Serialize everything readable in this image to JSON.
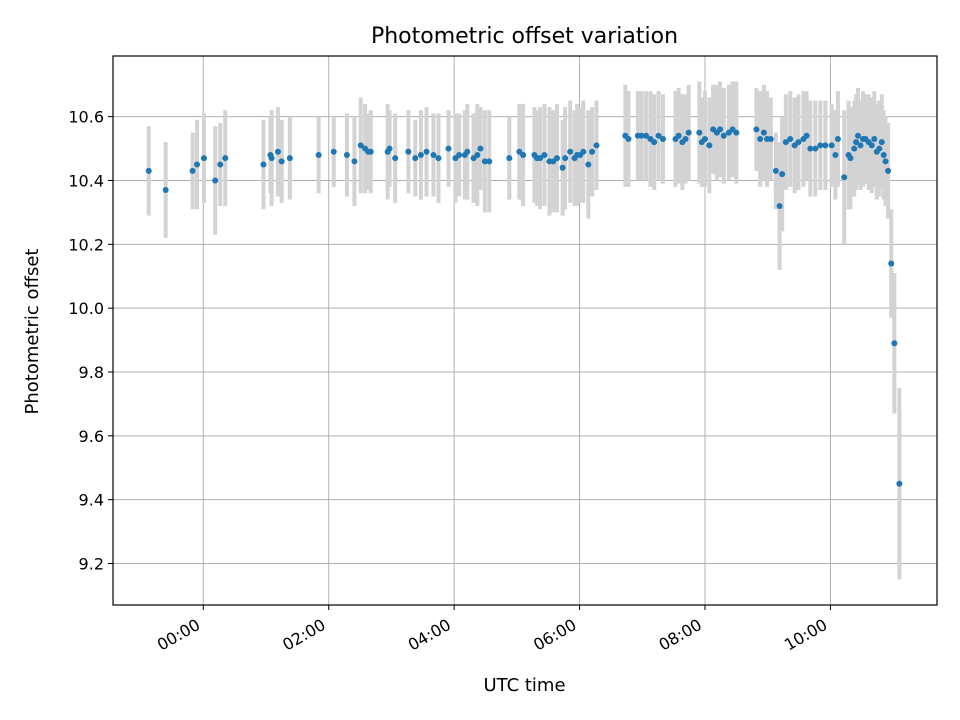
{
  "chart_data": {
    "type": "scatter",
    "title": "Photometric offset variation",
    "xlabel": "UTC time",
    "ylabel": "Photometric offset",
    "x_unit": "hours since 00:00 UTC",
    "xlim": [
      -1.44,
      11.7
    ],
    "ylim": [
      9.07,
      10.79
    ],
    "xticks": [
      0,
      2,
      4,
      6,
      8,
      10
    ],
    "xtick_labels": [
      "00:00",
      "02:00",
      "04:00",
      "06:00",
      "08:00",
      "10:00"
    ],
    "yticks": [
      9.2,
      9.4,
      9.6,
      9.8,
      10.0,
      10.2,
      10.4,
      10.6
    ],
    "ytick_labels": [
      "9.2",
      "9.4",
      "9.6",
      "9.8",
      "10.0",
      "10.2",
      "10.4",
      "10.6"
    ],
    "grid": true,
    "marker_color": "#1f77b4",
    "errorbar_color": "#d3d3d3",
    "series": [
      {
        "name": "Photometric offset",
        "x": [
          -0.87,
          -0.6,
          -0.17,
          -0.1,
          0.01,
          0.19,
          0.27,
          0.35,
          0.96,
          1.07,
          1.09,
          1.19,
          1.25,
          1.38,
          1.84,
          2.08,
          2.29,
          2.41,
          2.51,
          2.58,
          2.63,
          2.67,
          2.94,
          2.97,
          3.06,
          3.27,
          3.38,
          3.47,
          3.56,
          3.67,
          3.75,
          3.91,
          4.02,
          4.08,
          4.17,
          4.21,
          4.31,
          4.37,
          4.42,
          4.49,
          4.56,
          4.88,
          5.04,
          5.1,
          5.28,
          5.32,
          5.37,
          5.44,
          5.52,
          5.58,
          5.64,
          5.73,
          5.77,
          5.85,
          5.92,
          5.96,
          6.01,
          6.06,
          6.14,
          6.2,
          6.27,
          6.73,
          6.78,
          6.93,
          6.99,
          7.06,
          7.13,
          7.19,
          7.26,
          7.33,
          7.53,
          7.58,
          7.64,
          7.69,
          7.74,
          7.91,
          7.95,
          8.0,
          8.07,
          8.13,
          8.19,
          8.24,
          8.3,
          8.38,
          8.44,
          8.5,
          8.82,
          8.88,
          8.94,
          8.99,
          9.05,
          9.13,
          9.19,
          9.23,
          9.29,
          9.36,
          9.43,
          9.49,
          9.57,
          9.62,
          9.68,
          9.76,
          9.84,
          9.92,
          10.02,
          10.08,
          10.12,
          10.22,
          10.29,
          10.32,
          10.38,
          10.41,
          10.44,
          10.48,
          10.52,
          10.56,
          10.61,
          10.66,
          10.7,
          10.74,
          10.78,
          10.82,
          10.85,
          10.88,
          10.92,
          10.97,
          11.02,
          11.1
        ],
        "y": [
          10.43,
          10.37,
          10.43,
          10.45,
          10.47,
          10.4,
          10.45,
          10.47,
          10.45,
          10.48,
          10.47,
          10.49,
          10.46,
          10.47,
          10.48,
          10.49,
          10.48,
          10.46,
          10.51,
          10.5,
          10.49,
          10.49,
          10.49,
          10.5,
          10.47,
          10.49,
          10.47,
          10.48,
          10.49,
          10.48,
          10.47,
          10.5,
          10.47,
          10.48,
          10.48,
          10.49,
          10.47,
          10.48,
          10.5,
          10.46,
          10.46,
          10.47,
          10.49,
          10.48,
          10.48,
          10.47,
          10.47,
          10.48,
          10.46,
          10.46,
          10.47,
          10.44,
          10.47,
          10.49,
          10.47,
          10.48,
          10.48,
          10.49,
          10.45,
          10.49,
          10.51,
          10.54,
          10.53,
          10.54,
          10.54,
          10.54,
          10.53,
          10.52,
          10.54,
          10.53,
          10.53,
          10.54,
          10.52,
          10.53,
          10.55,
          10.55,
          10.52,
          10.53,
          10.51,
          10.56,
          10.55,
          10.56,
          10.54,
          10.55,
          10.56,
          10.55,
          10.56,
          10.53,
          10.55,
          10.53,
          10.53,
          10.43,
          10.32,
          10.42,
          10.52,
          10.53,
          10.51,
          10.52,
          10.53,
          10.54,
          10.5,
          10.5,
          10.51,
          10.51,
          10.51,
          10.48,
          10.53,
          10.41,
          10.48,
          10.47,
          10.5,
          10.52,
          10.54,
          10.51,
          10.53,
          10.53,
          10.52,
          10.51,
          10.53,
          10.49,
          10.5,
          10.52,
          10.48,
          10.46,
          10.43,
          10.14,
          9.89,
          9.45
        ],
        "err": [
          0.14,
          0.15,
          0.12,
          0.14,
          0.14,
          0.17,
          0.13,
          0.15,
          0.14,
          0.12,
          0.15,
          0.14,
          0.13,
          0.13,
          0.12,
          0.11,
          0.13,
          0.14,
          0.15,
          0.14,
          0.12,
          0.13,
          0.15,
          0.12,
          0.14,
          0.13,
          0.12,
          0.14,
          0.14,
          0.13,
          0.14,
          0.12,
          0.14,
          0.13,
          0.14,
          0.15,
          0.14,
          0.16,
          0.13,
          0.16,
          0.16,
          0.13,
          0.15,
          0.16,
          0.15,
          0.15,
          0.16,
          0.16,
          0.17,
          0.16,
          0.17,
          0.15,
          0.16,
          0.16,
          0.15,
          0.16,
          0.15,
          0.16,
          0.17,
          0.14,
          0.14,
          0.16,
          0.15,
          0.14,
          0.14,
          0.14,
          0.15,
          0.15,
          0.14,
          0.14,
          0.15,
          0.15,
          0.15,
          0.14,
          0.15,
          0.16,
          0.14,
          0.15,
          0.15,
          0.14,
          0.15,
          0.15,
          0.15,
          0.15,
          0.15,
          0.16,
          0.13,
          0.15,
          0.15,
          0.15,
          0.13,
          0.12,
          0.2,
          0.18,
          0.15,
          0.15,
          0.15,
          0.15,
          0.15,
          0.14,
          0.15,
          0.15,
          0.14,
          0.14,
          0.13,
          0.14,
          0.15,
          0.21,
          0.17,
          0.16,
          0.15,
          0.15,
          0.15,
          0.14,
          0.15,
          0.14,
          0.15,
          0.15,
          0.15,
          0.15,
          0.15,
          0.15,
          0.14,
          0.14,
          0.15,
          0.17,
          0.22,
          0.3
        ]
      }
    ]
  }
}
